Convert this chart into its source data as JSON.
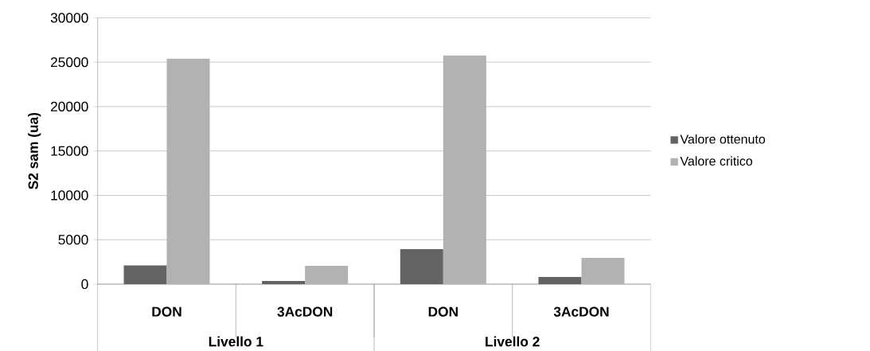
{
  "chart_data": {
    "type": "bar",
    "ylabel": "S2 sam (ua)",
    "categories": [
      "DON",
      "3AcDON",
      "DON",
      "3AcDON"
    ],
    "series": [
      {
        "name": "Valore ottenuto",
        "color": "#636363",
        "values": [
          2100,
          350,
          3950,
          800
        ]
      },
      {
        "name": "Valore critico",
        "color": "#b2b2b2",
        "values": [
          25400,
          2050,
          25750,
          2950
        ]
      }
    ],
    "ylim": [
      0,
      30000
    ],
    "yticks": [
      0,
      5000,
      10000,
      15000,
      20000,
      25000,
      30000
    ],
    "grid": "y",
    "legend": "right",
    "annotations": [
      "Livello 1",
      "Livello 2"
    ]
  }
}
